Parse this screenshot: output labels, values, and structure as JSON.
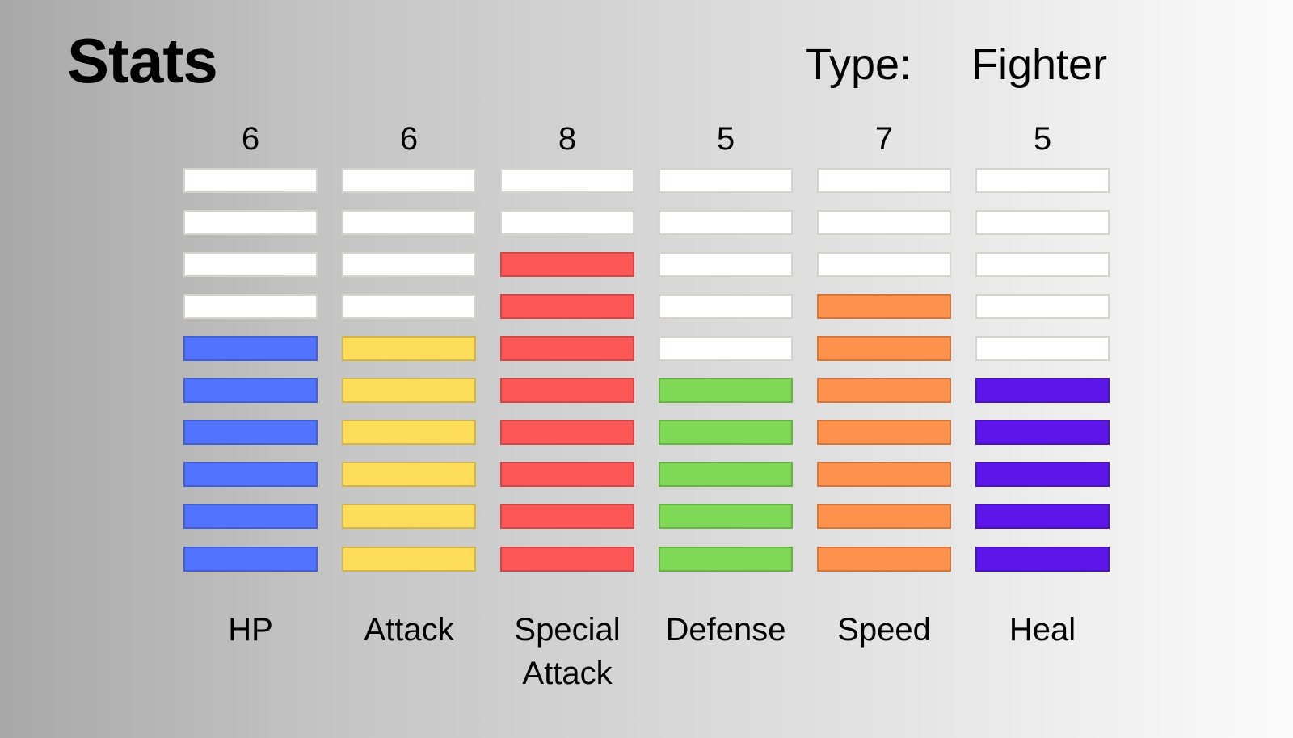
{
  "title": "Stats",
  "type": {
    "label": "Type:",
    "value": "Fighter"
  },
  "bar_segments_total": 10,
  "stats": [
    {
      "name": "HP",
      "value": 6,
      "color": "#5273fe"
    },
    {
      "name": "Attack",
      "value": 6,
      "color": "#fedd5a"
    },
    {
      "name": "Special\nAttack",
      "value": 8,
      "color": "#fe5757"
    },
    {
      "name": "Defense",
      "value": 5,
      "color": "#7fd957"
    },
    {
      "name": "Speed",
      "value": 7,
      "color": "#fe914c"
    },
    {
      "name": "Heal",
      "value": 5,
      "color": "#5c16e9"
    }
  ]
}
